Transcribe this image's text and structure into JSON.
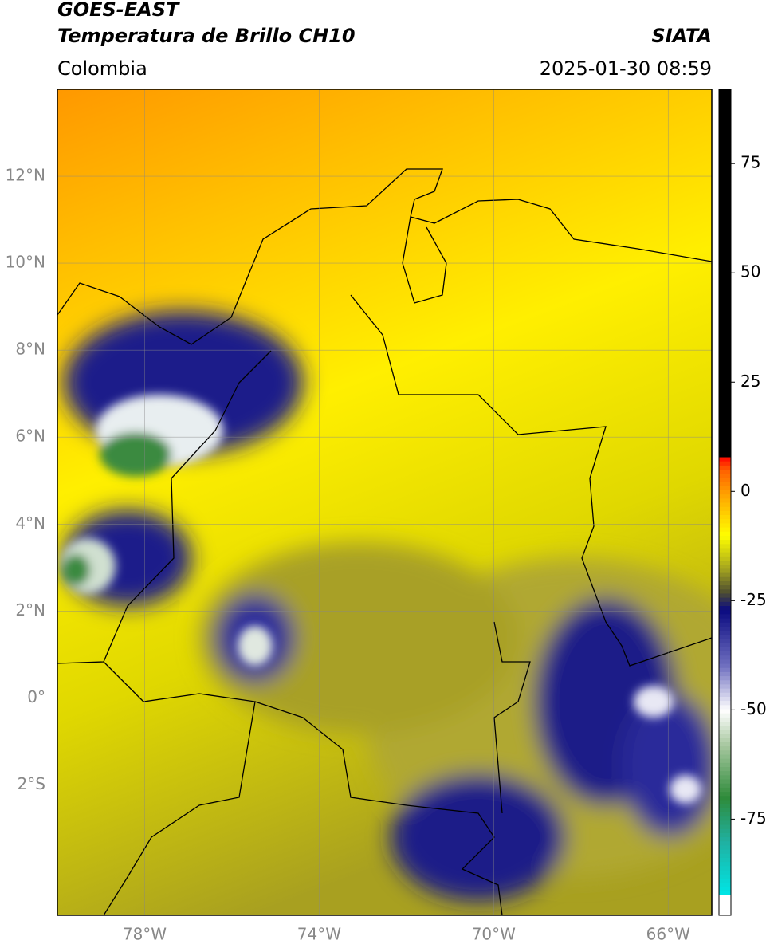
{
  "header": {
    "source": "GOES-EAST",
    "product": "Temperatura de Brillo CH10",
    "region": "Colombia",
    "agency": "SIATA",
    "datetime": "2025-01-30 08:59"
  },
  "map": {
    "lonlim": [
      -80,
      -65
    ],
    "latlim": [
      -5,
      14
    ],
    "grid": true,
    "lonticks": [
      {
        "value": -78,
        "label": "78°W"
      },
      {
        "value": -74,
        "label": "74°W"
      },
      {
        "value": -70,
        "label": "70°W"
      },
      {
        "value": -66,
        "label": "66°W"
      }
    ],
    "latticks": [
      {
        "value": 12,
        "label": "12°N"
      },
      {
        "value": 10,
        "label": "10°N"
      },
      {
        "value": 8,
        "label": "8°N"
      },
      {
        "value": 6,
        "label": "6°N"
      },
      {
        "value": 4,
        "label": "4°N"
      },
      {
        "value": 2,
        "label": "2°N"
      },
      {
        "value": 0,
        "label": "0°"
      },
      {
        "value": -2,
        "label": "2°S"
      }
    ]
  },
  "colorbar": {
    "lim": [
      -97,
      92
    ],
    "ticks": [
      75,
      50,
      25,
      0,
      -25,
      -50,
      -75
    ],
    "stops": [
      [
        -97,
        "#ffffff"
      ],
      [
        -92,
        "#ffffff"
      ],
      [
        -92,
        "#00e5e5"
      ],
      [
        -80,
        "#20b0a0"
      ],
      [
        -70,
        "#2e8b3a"
      ],
      [
        -58,
        "#a8c8a0"
      ],
      [
        -50,
        "#ffffff"
      ],
      [
        -40,
        "#7070c0"
      ],
      [
        -27,
        "#0a0a80"
      ],
      [
        -23,
        "#505030"
      ],
      [
        -18,
        "#a0a020"
      ],
      [
        -10,
        "#ffff00"
      ],
      [
        -2,
        "#ffb000"
      ],
      [
        5,
        "#ff6000"
      ],
      [
        8,
        "#ff0000"
      ],
      [
        8,
        "#000000"
      ],
      [
        92,
        "#000000"
      ]
    ]
  }
}
